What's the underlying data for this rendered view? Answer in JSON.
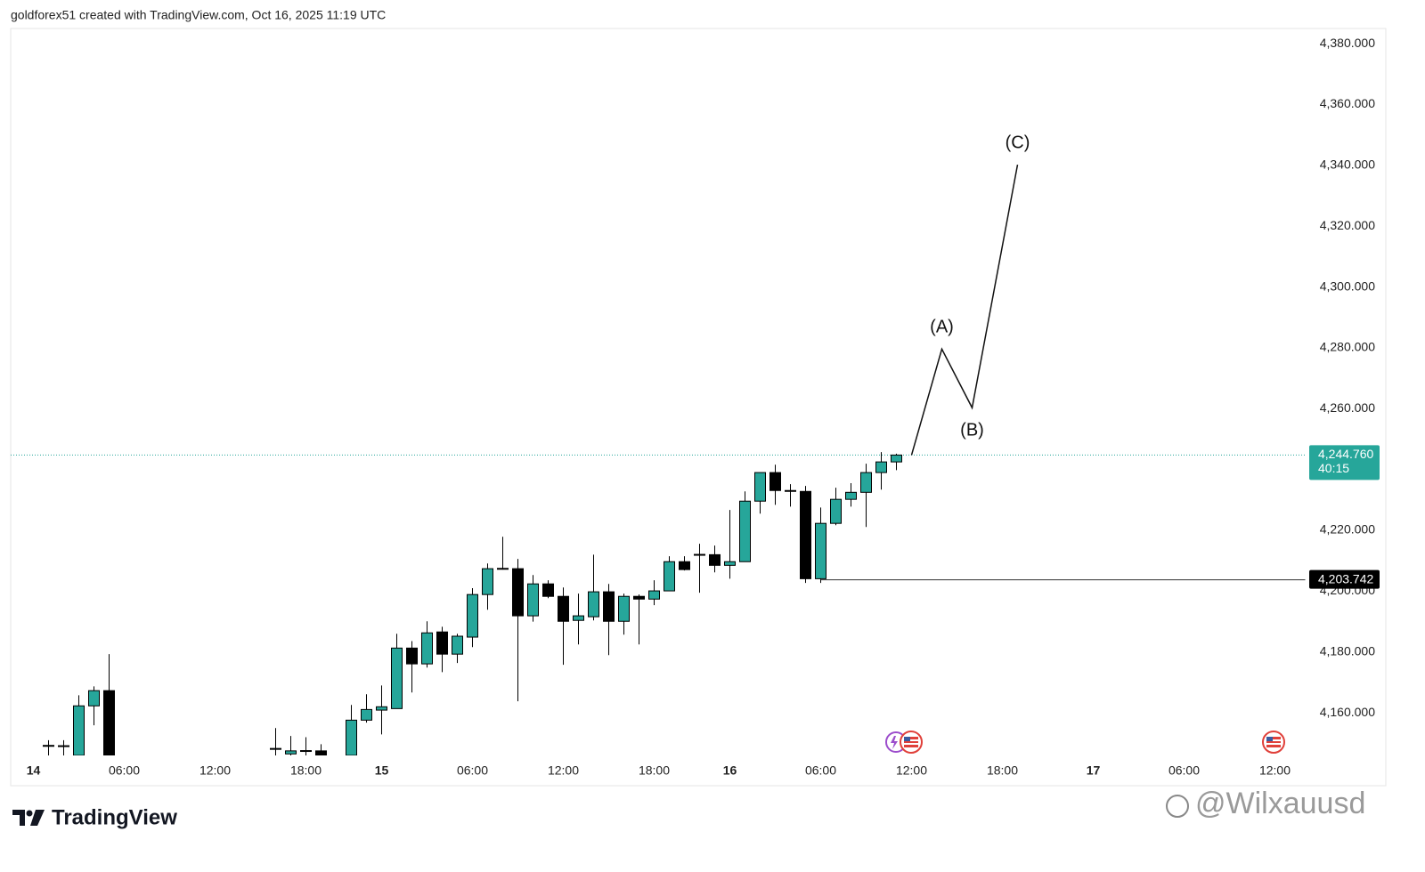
{
  "header": {
    "text": "goldforex51 created with TradingView.com, Oct 16, 2025 11:19 UTC"
  },
  "footer": {
    "brand": "TradingView",
    "watermark": "@Wilxauusd"
  },
  "chart_data": {
    "type": "candlestick",
    "up_color": "#26a69a",
    "down_color": "#000000",
    "xlim": [
      -1.5,
      84
    ],
    "xticks": [
      {
        "value": 0,
        "label": "14"
      },
      {
        "value": 6,
        "label": "06:00"
      },
      {
        "value": 12,
        "label": "12:00"
      },
      {
        "value": 18,
        "label": "18:00"
      },
      {
        "value": 23,
        "label": "15"
      },
      {
        "value": 29,
        "label": "06:00"
      },
      {
        "value": 35,
        "label": "12:00"
      },
      {
        "value": 41,
        "label": "18:00"
      },
      {
        "value": 46,
        "label": "16"
      },
      {
        "value": 52,
        "label": "06:00"
      },
      {
        "value": 58,
        "label": "12:00"
      },
      {
        "value": 64,
        "label": "18:00"
      },
      {
        "value": 70,
        "label": "17"
      },
      {
        "value": 76,
        "label": "06:00"
      },
      {
        "value": 82,
        "label": "12:00"
      }
    ],
    "ylim": [
      4146,
      4385
    ],
    "yticks": [
      {
        "value": 4160,
        "label": "4,160.000"
      },
      {
        "value": 4180,
        "label": "4,180.000"
      },
      {
        "value": 4200,
        "label": "4,200.000"
      },
      {
        "value": 4220,
        "label": "4,220.000"
      },
      {
        "value": 4240,
        "label": "4,240.000"
      },
      {
        "value": 4260,
        "label": "4,260.000"
      },
      {
        "value": 4280,
        "label": "4,280.000"
      },
      {
        "value": 4300,
        "label": "4,300.000"
      },
      {
        "value": 4320,
        "label": "4,320.000"
      },
      {
        "value": 4340,
        "label": "4,340.000"
      },
      {
        "value": 4360,
        "label": "4,360.000"
      },
      {
        "value": 4380,
        "label": "4,380.000"
      }
    ],
    "x": [
      1,
      2,
      3,
      4,
      5,
      16,
      17,
      18,
      19,
      21,
      22,
      23,
      24,
      25,
      26,
      27,
      28,
      29,
      30,
      31,
      32,
      33,
      34,
      35,
      36,
      37,
      38,
      39,
      40,
      41,
      42,
      43,
      44,
      45,
      46,
      47,
      48,
      49,
      50,
      51,
      52,
      53,
      54,
      55,
      56,
      57
    ],
    "open": [
      4149,
      4149,
      4146,
      4162.3,
      4167.3,
      4148,
      4146.5,
      4147.5,
      4147.5,
      4146,
      4157.6,
      4160.9,
      4161.4,
      4181.3,
      4176.1,
      4186.6,
      4179.3,
      4184.9,
      4198.9,
      4207.4,
      4207.4,
      4191.9,
      4202.4,
      4198.3,
      4190.4,
      4191.6,
      4199.8,
      4190.1,
      4198.3,
      4197.4,
      4200.1,
      4209.7,
      4212.1,
      4212,
      4208.5,
      4209.7,
      4229.6,
      4239,
      4233.1,
      4232.8,
      4204.1,
      4222.3,
      4230.2,
      4232.5,
      4239,
      4242.5
    ],
    "high": [
      4151,
      4151,
      4165.8,
      4168.7,
      4179.3,
      4155,
      4152.4,
      4152,
      4149.7,
      4162.6,
      4166.1,
      4169,
      4186,
      4183.6,
      4190.1,
      4188.3,
      4186,
      4201,
      4209.1,
      4217.9,
      4210.6,
      4205.3,
      4203.6,
      4201.2,
      4199.2,
      4212,
      4202.4,
      4199.2,
      4198.9,
      4203.6,
      4211.5,
      4211.5,
      4215.6,
      4215,
      4226.7,
      4232.8,
      4239,
      4241.6,
      4235.2,
      4234.6,
      4227.5,
      4234,
      4235.5,
      4241.9,
      4245.7,
      4245.2
    ],
    "low": [
      4146,
      4146,
      4146,
      4155.9,
      4146,
      4146,
      4146,
      4146,
      4146,
      4146,
      4156.8,
      4152.9,
      4161.4,
      4166.7,
      4174.9,
      4173.4,
      4176.4,
      4181.6,
      4193.9,
      4207.1,
      4163.8,
      4190,
      4197.7,
      4175.8,
      4182.5,
      4190.4,
      4179,
      4185.7,
      4182.5,
      4195.4,
      4200.1,
      4206.8,
      4199.5,
      4206.2,
      4204.1,
      4209.7,
      4225.5,
      4228.4,
      4227.8,
      4202.7,
      4202.7,
      4221.7,
      4227.8,
      4221.1,
      4233.4,
      4239.8
    ],
    "close": [
      4149.3,
      4149.2,
      4162.3,
      4167.3,
      4146,
      4148.3,
      4147.5,
      4147.6,
      4146,
      4157.6,
      4161.1,
      4162,
      4181.3,
      4176.1,
      4186.3,
      4179.3,
      4185.2,
      4198.9,
      4207.4,
      4207.5,
      4191.9,
      4202.4,
      4198.3,
      4190.1,
      4191.9,
      4199.8,
      4190.1,
      4198.3,
      4197.4,
      4200.1,
      4209.7,
      4207.1,
      4212,
      4208.5,
      4209.7,
      4229.6,
      4239,
      4233.1,
      4232.9,
      4204.1,
      4222.3,
      4230.2,
      4232.5,
      4239,
      4242.5,
      4244.76
    ],
    "last_price": {
      "value": 4244.76,
      "label": "4,244.760"
    },
    "countdown": "40:15",
    "level": {
      "value": 4203.742,
      "label": "4,203.742",
      "x_start": 52
    },
    "wave": {
      "x": [
        58,
        60,
        62,
        65
      ],
      "values": [
        4244.76,
        4279.6,
        4260.3,
        4340.2
      ],
      "labels": [
        null,
        "(A)",
        "(B)",
        "(C)"
      ]
    }
  }
}
